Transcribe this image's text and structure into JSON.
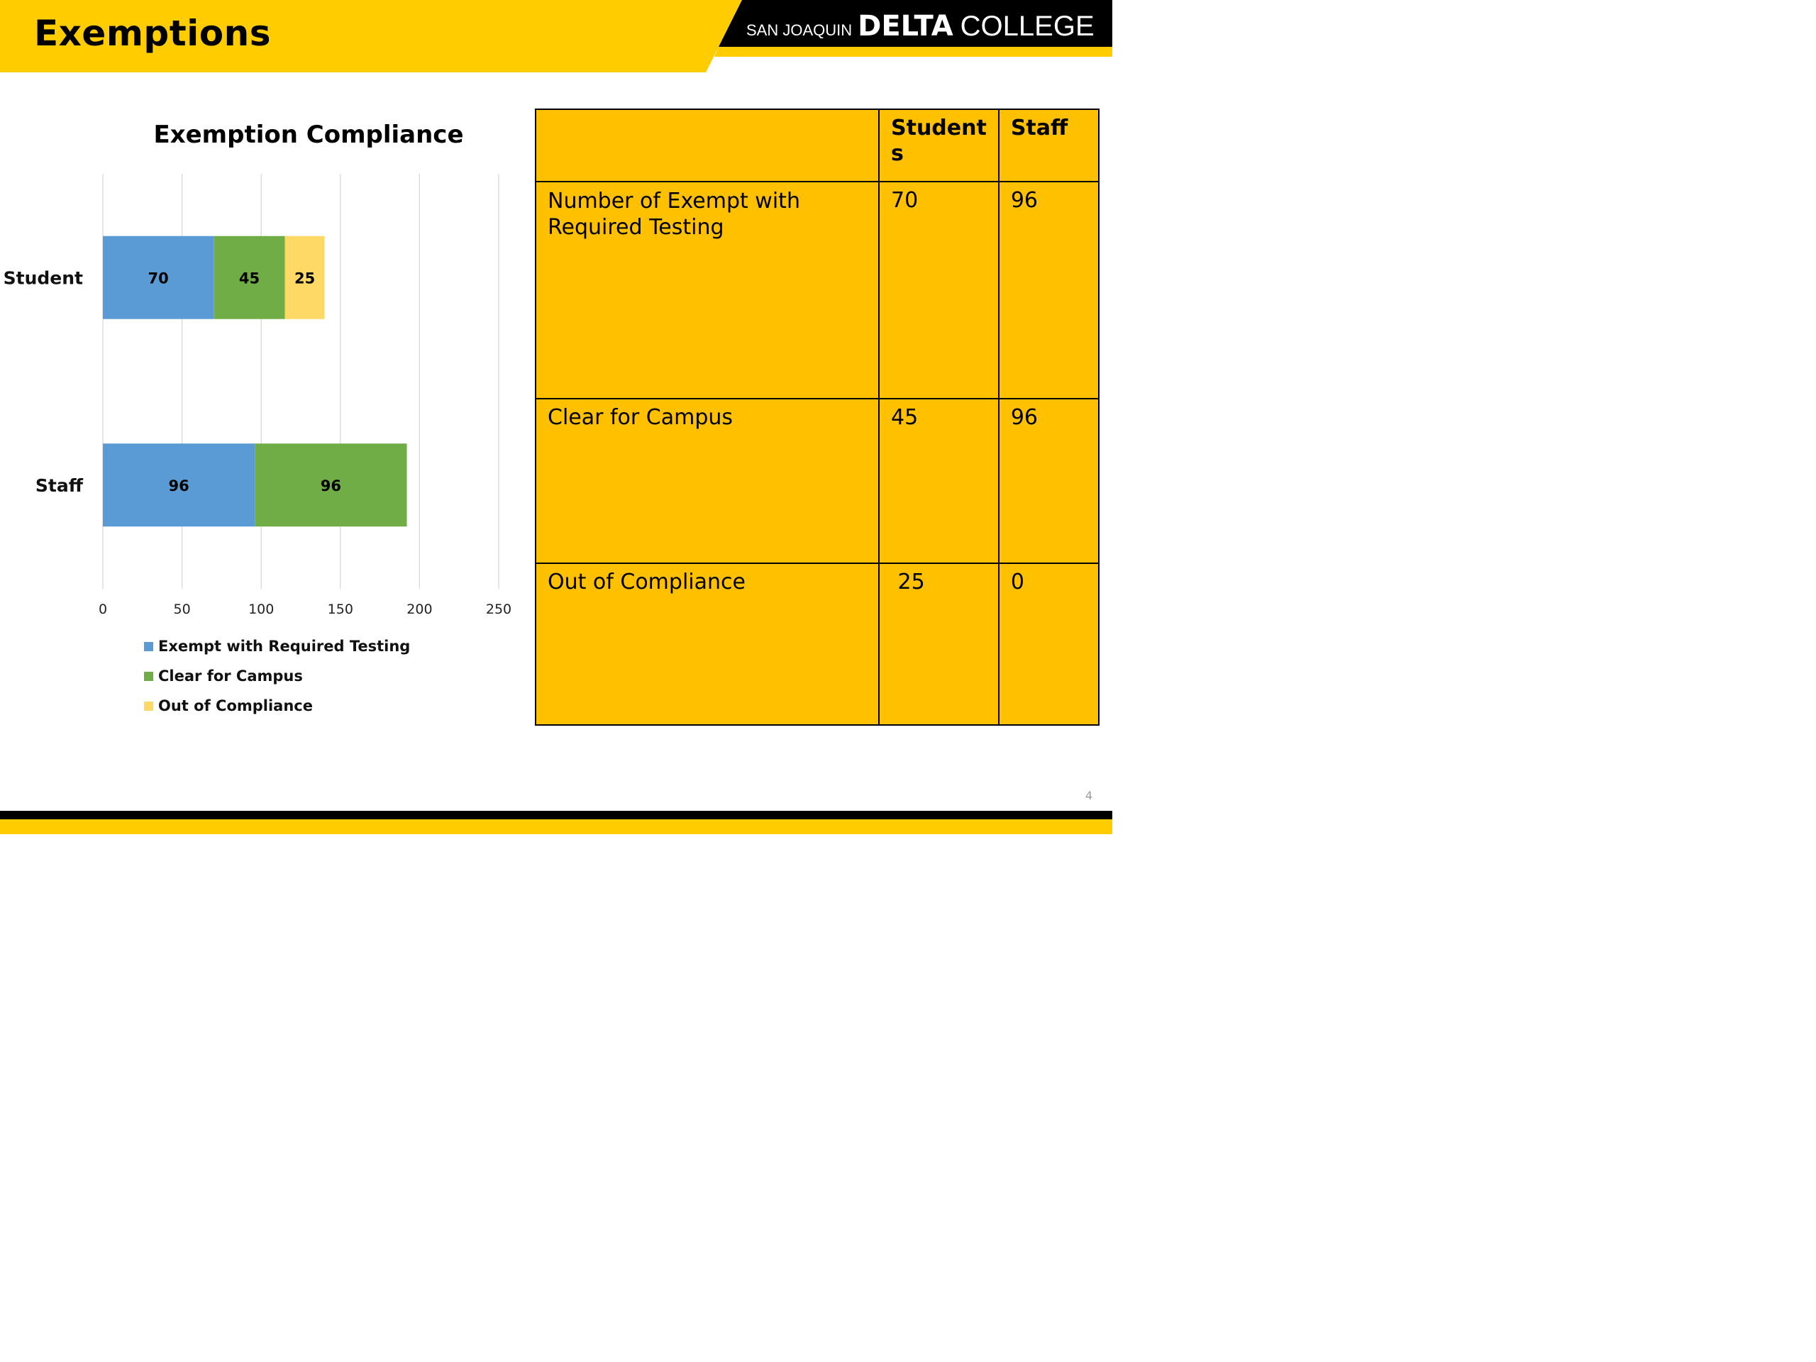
{
  "slide": {
    "title": "Exemptions",
    "logo": {
      "small": "SAN JOAQUIN",
      "big": "DELTA",
      "college": "COLLEGE"
    },
    "page_number": "4",
    "colors": {
      "yellow": "#ffcc00",
      "table_yellow": "#ffc000",
      "black": "#000000"
    }
  },
  "chart_data": {
    "type": "bar",
    "orientation": "horizontal",
    "stacked": true,
    "title": "Exemption Compliance",
    "categories": [
      "Student",
      "Staff"
    ],
    "series": [
      {
        "name": "Exempt with Required Testing",
        "values": [
          70,
          96
        ],
        "color": "#5b9bd5"
      },
      {
        "name": "Clear for Campus",
        "values": [
          45,
          96
        ],
        "color": "#70ad47"
      },
      {
        "name": "Out of Compliance",
        "values": [
          25,
          0
        ],
        "color": "#ffd966"
      }
    ],
    "xlim": [
      0,
      250
    ],
    "xticks": [
      0,
      50,
      100,
      150,
      200,
      250
    ],
    "grid": true,
    "legend": "bottom"
  },
  "table": {
    "headers": [
      "",
      "Student\ns",
      "Staff"
    ],
    "rows": [
      [
        "Number of Exempt with Required Testing",
        "70",
        "96"
      ],
      [
        "Clear for Campus",
        "45",
        "96"
      ],
      [
        "Out of Compliance",
        " 25",
        "0"
      ]
    ]
  }
}
